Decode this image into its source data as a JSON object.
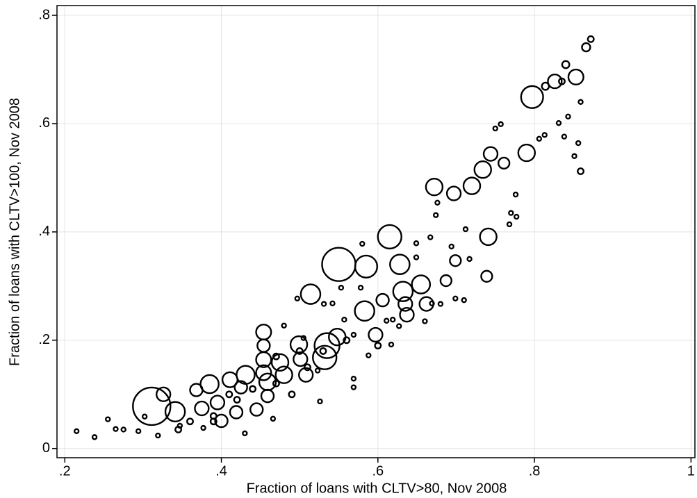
{
  "chart_data": {
    "type": "scatter",
    "xlabel": "Fraction of loans with CLTV>80, Nov 2008",
    "ylabel": "Fraction of loans with CLTV>100, Nov 2008",
    "color": "#000000",
    "grid": true,
    "xlim": [
      0.19,
      1.005
    ],
    "ylim": [
      -0.017,
      0.818
    ],
    "xticks": [
      {
        "value": 0.2,
        "label": ".2"
      },
      {
        "value": 0.4,
        "label": ".4"
      },
      {
        "value": 0.6,
        "label": ".6"
      },
      {
        "value": 0.8,
        "label": ".8"
      },
      1
    ],
    "yticks": [
      0,
      {
        "value": 0.2,
        "label": ".2"
      },
      {
        "value": 0.4,
        "label": ".4"
      },
      {
        "value": 0.6,
        "label": ".6"
      },
      {
        "value": 0.8,
        "label": ".8"
      }
    ],
    "x": [
      0.311,
      0.55,
      0.514,
      0.585,
      0.615,
      0.385,
      0.341,
      0.326,
      0.741,
      0.79,
      0.797,
      0.826,
      0.853,
      0.866,
      0.872,
      0.84,
      0.835,
      0.734,
      0.744,
      0.72,
      0.672,
      0.697,
      0.628,
      0.655,
      0.632,
      0.583,
      0.635,
      0.662,
      0.637,
      0.535,
      0.532,
      0.548,
      0.597,
      0.499,
      0.454,
      0.454,
      0.454,
      0.454,
      0.431,
      0.411,
      0.475,
      0.501,
      0.48,
      0.459,
      0.508,
      0.368,
      0.395,
      0.375,
      0.4,
      0.419,
      0.445,
      0.459,
      0.425,
      0.606,
      0.687,
      0.699,
      0.739,
      0.814,
      0.761,
      0.215,
      0.238,
      0.255,
      0.265,
      0.275,
      0.294,
      0.302,
      0.319,
      0.347,
      0.377,
      0.43,
      0.466,
      0.526,
      0.523,
      0.569,
      0.569,
      0.569,
      0.588,
      0.617,
      0.627,
      0.619,
      0.66,
      0.669,
      0.68,
      0.699,
      0.71,
      0.717,
      0.77,
      0.777,
      0.768,
      0.776,
      0.806,
      0.813,
      0.831,
      0.843,
      0.838,
      0.856,
      0.859,
      0.859,
      0.851,
      0.75,
      0.757,
      0.712,
      0.667,
      0.674,
      0.676,
      0.649,
      0.649,
      0.694,
      0.58,
      0.578,
      0.553,
      0.542,
      0.531,
      0.497,
      0.48,
      0.505,
      0.557,
      0.611,
      0.36,
      0.39,
      0.42,
      0.44,
      0.47,
      0.49,
      0.51,
      0.53,
      0.56,
      0.5,
      0.47,
      0.41,
      0.345,
      0.39,
      0.6
    ],
    "y": [
      0.078,
      0.34,
      0.285,
      0.336,
      0.391,
      0.119,
      0.068,
      0.1,
      0.391,
      0.546,
      0.649,
      0.678,
      0.686,
      0.741,
      0.756,
      0.709,
      0.678,
      0.515,
      0.544,
      0.485,
      0.483,
      0.471,
      0.34,
      0.303,
      0.29,
      0.254,
      0.267,
      0.267,
      0.247,
      0.19,
      0.168,
      0.206,
      0.21,
      0.192,
      0.215,
      0.19,
      0.164,
      0.14,
      0.136,
      0.127,
      0.159,
      0.165,
      0.136,
      0.123,
      0.136,
      0.108,
      0.085,
      0.074,
      0.051,
      0.067,
      0.072,
      0.097,
      0.113,
      0.274,
      0.31,
      0.347,
      0.318,
      0.669,
      0.527,
      0.032,
      0.021,
      0.054,
      0.036,
      0.035,
      0.032,
      0.059,
      0.024,
      0.042,
      0.038,
      0.028,
      0.055,
      0.087,
      0.144,
      0.129,
      0.113,
      0.21,
      0.172,
      0.192,
      0.226,
      0.238,
      0.235,
      0.268,
      0.267,
      0.277,
      0.274,
      0.35,
      0.435,
      0.428,
      0.414,
      0.469,
      0.572,
      0.579,
      0.601,
      0.613,
      0.576,
      0.564,
      0.512,
      0.64,
      0.54,
      0.591,
      0.599,
      0.405,
      0.39,
      0.431,
      0.454,
      0.379,
      0.353,
      0.373,
      0.378,
      0.297,
      0.297,
      0.268,
      0.267,
      0.277,
      0.227,
      0.204,
      0.238,
      0.236,
      0.05,
      0.06,
      0.09,
      0.11,
      0.12,
      0.1,
      0.15,
      0.18,
      0.2,
      0.18,
      0.17,
      0.1,
      0.035,
      0.05,
      0.19
    ],
    "sizes": [
      81,
      64,
      22,
      28,
      32,
      19,
      22,
      11,
      16,
      16,
      28,
      11,
      13,
      4,
      2,
      3,
      2,
      16,
      11,
      16,
      16,
      11,
      22,
      19,
      22,
      22,
      11,
      11,
      11,
      36,
      32,
      16,
      11,
      16,
      13,
      9,
      13,
      13,
      19,
      13,
      16,
      11,
      16,
      16,
      11,
      9,
      11,
      11,
      9,
      9,
      9,
      9,
      9,
      9,
      7,
      7,
      7,
      3,
      7,
      1,
      1,
      1,
      1,
      1,
      1,
      1,
      1,
      1,
      1,
      1,
      1,
      1,
      1,
      1,
      1,
      1,
      1,
      1,
      1,
      1,
      1,
      1,
      1,
      1,
      1,
      1,
      1,
      1,
      1,
      1,
      1,
      1,
      1,
      1,
      1,
      1,
      2,
      1,
      1,
      1,
      1,
      1,
      1,
      1,
      1,
      1,
      1,
      1,
      1,
      1,
      1,
      1,
      1,
      1,
      1,
      1,
      1,
      1,
      2,
      2,
      2,
      2,
      2,
      2,
      2,
      2,
      2,
      2,
      2,
      2,
      2,
      2,
      2
    ]
  }
}
